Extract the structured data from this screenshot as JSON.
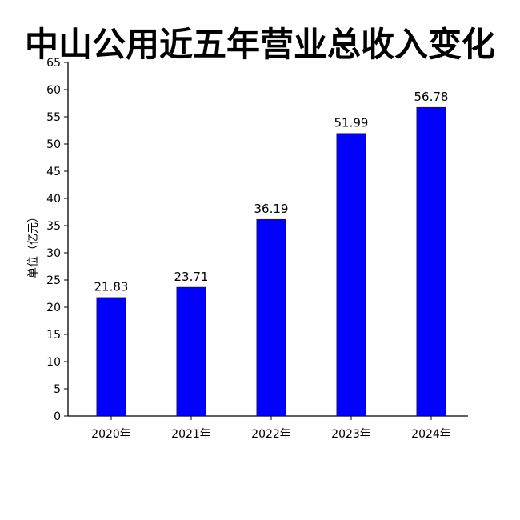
{
  "chart_data": {
    "type": "bar",
    "title": "中山公用近五年营业总收入变化",
    "xlabel": "",
    "ylabel": "单位（亿元）",
    "categories": [
      "2020年",
      "2021年",
      "2022年",
      "2023年",
      "2024年"
    ],
    "values": [
      21.83,
      23.71,
      36.19,
      51.99,
      56.78
    ],
    "data_labels": [
      "21.83",
      "23.71",
      "36.19",
      "51.99",
      "56.78"
    ],
    "ylim": [
      0,
      65
    ],
    "yticks": [
      0,
      5,
      10,
      15,
      20,
      25,
      30,
      35,
      40,
      45,
      50,
      55,
      60,
      65
    ],
    "bar_color": "#0000ff",
    "grid": false,
    "legend": "none"
  }
}
